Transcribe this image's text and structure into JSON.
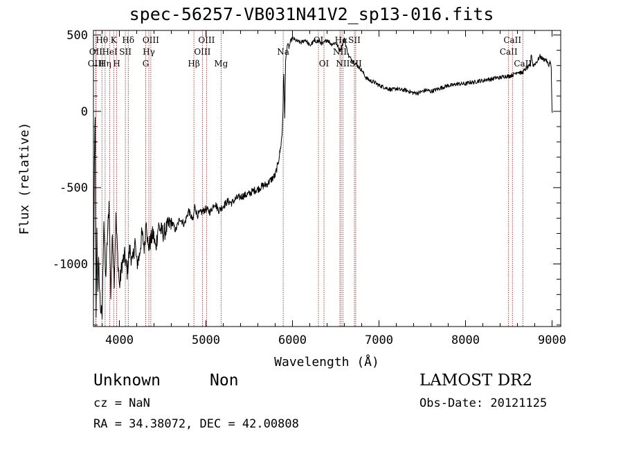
{
  "header": {
    "title": "spec-56257-VB031N41V2_sp13-016.fits"
  },
  "info": {
    "object_class": "Unknown",
    "object_subclass": "Non",
    "survey": "LAMOST DR2",
    "cz": "cz = NaN",
    "obs_date": "Obs-Date: 20121125",
    "radec": "RA =  34.38072, DEC =  42.00808"
  },
  "chart_data": {
    "type": "line",
    "xlabel": "Wavelength (Å)",
    "ylabel": "Flux (relative)",
    "xlim": [
      3700,
      9100
    ],
    "ylim": [
      -1410,
      530
    ],
    "xticks": [
      4000,
      5000,
      6000,
      7000,
      8000,
      9000
    ],
    "yticks": [
      500,
      0,
      -500,
      -1000
    ],
    "line_color": "#000000",
    "marker_color": "#8b1a1a",
    "series": [
      {
        "x": [
          3700,
          3710,
          3720,
          3730,
          3740,
          3750,
          3760,
          3780,
          3800,
          3820,
          3840,
          3860,
          3880,
          3900,
          3920,
          3940,
          3960,
          3980,
          4000,
          4030,
          4060,
          4090,
          4120,
          4150,
          4180,
          4200,
          4230,
          4260,
          4290,
          4310,
          4330,
          4360,
          4390,
          4420,
          4450,
          4480,
          4510,
          4550,
          4600,
          4650,
          4700,
          4750,
          4800,
          4850,
          4870,
          4900,
          4950,
          5000,
          5050,
          5100,
          5150,
          5200,
          5250,
          5300,
          5350,
          5400,
          5450,
          5500,
          5550,
          5600,
          5650,
          5700,
          5750,
          5800,
          5830,
          5860,
          5880,
          5890,
          5895,
          5900,
          5910,
          5920,
          5940,
          5960,
          5980,
          6000,
          6050,
          6100,
          6150,
          6200,
          6250,
          6300,
          6350,
          6400,
          6450,
          6500,
          6550,
          6600,
          6650,
          6700,
          6750,
          6800,
          6850,
          6900,
          6950,
          7000,
          7050,
          7100,
          7150,
          7200,
          7250,
          7300,
          7350,
          7400,
          7450,
          7500,
          7550,
          7600,
          7650,
          7700,
          7750,
          7800,
          7850,
          7900,
          7950,
          8000,
          8050,
          8100,
          8150,
          8200,
          8250,
          8300,
          8350,
          8400,
          8450,
          8500,
          8550,
          8600,
          8650,
          8700,
          8750,
          8760,
          8780,
          8800,
          8830,
          8860,
          8900,
          8930,
          8960,
          8980,
          8990,
          9000,
          9005
        ],
        "y": [
          -1300,
          -400,
          0,
          -1390,
          -800,
          -1150,
          -1000,
          -1280,
          -1350,
          -700,
          -1100,
          -850,
          -600,
          -1200,
          -800,
          -1100,
          -700,
          -950,
          -1150,
          -1000,
          -950,
          -1050,
          -900,
          -1000,
          -850,
          -1000,
          -950,
          -800,
          -900,
          -680,
          -900,
          -850,
          -800,
          -900,
          -750,
          -780,
          -800,
          -760,
          -720,
          -780,
          -700,
          -740,
          -650,
          -720,
          -620,
          -680,
          -660,
          -640,
          -660,
          -600,
          -650,
          -620,
          -590,
          -600,
          -570,
          -560,
          -550,
          -540,
          -520,
          -510,
          -490,
          -480,
          -450,
          -420,
          -350,
          -250,
          -150,
          0,
          200,
          250,
          -50,
          320,
          440,
          420,
          460,
          480,
          460,
          450,
          470,
          430,
          460,
          460,
          440,
          470,
          440,
          450,
          400,
          470,
          360,
          330,
          300,
          270,
          220,
          200,
          190,
          170,
          160,
          150,
          140,
          150,
          140,
          140,
          130,
          120,
          120,
          130,
          140,
          130,
          140,
          150,
          160,
          170,
          170,
          180,
          180,
          180,
          190,
          190,
          200,
          200,
          210,
          210,
          220,
          220,
          230,
          230,
          240,
          260,
          250,
          280,
          300,
          380,
          300,
          310,
          330,
          360,
          340,
          340,
          300,
          330,
          280,
          0,
          -10
        ],
        "noise": 55
      }
    ],
    "lines": [
      {
        "name": "Hθ",
        "x": 3798,
        "row": 0
      },
      {
        "name": "OII",
        "x": 3727,
        "row": 1
      },
      {
        "name": "OIII",
        "x": 3730,
        "row": 2
      },
      {
        "name": "Hη",
        "x": 3835,
        "row": 2
      },
      {
        "name": "HeI",
        "x": 3889,
        "row": 1
      },
      {
        "name": "K",
        "x": 3934,
        "row": 0
      },
      {
        "name": "H",
        "x": 3969,
        "row": 2
      },
      {
        "name": "SII",
        "x": 4069,
        "row": 1
      },
      {
        "name": "Hδ",
        "x": 4102,
        "row": 0
      },
      {
        "name": "G",
        "x": 4304,
        "row": 2
      },
      {
        "name": "Hγ",
        "x": 4340,
        "row": 1
      },
      {
        "name": "OIII",
        "x": 4363,
        "row": 0
      },
      {
        "name": "Hβ",
        "x": 4861,
        "row": 2
      },
      {
        "name": "OIII",
        "x": 4959,
        "row": 1
      },
      {
        "name": "OIII",
        "x": 5007,
        "row": 0
      },
      {
        "name": "Mg",
        "x": 5175,
        "row": 2
      },
      {
        "name": "Na",
        "x": 5893,
        "row": 1
      },
      {
        "name": "OI",
        "x": 6300,
        "row": 0
      },
      {
        "name": "OI",
        "x": 6364,
        "row": 2
      },
      {
        "name": "NII",
        "x": 6548,
        "row": 1
      },
      {
        "name": "Hα",
        "x": 6563,
        "row": 0
      },
      {
        "name": "NII",
        "x": 6583,
        "row": 2
      },
      {
        "name": "SII",
        "x": 6716,
        "row": 0
      },
      {
        "name": "SII",
        "x": 6731,
        "row": 2
      },
      {
        "name": "CaII",
        "x": 8498,
        "row": 1
      },
      {
        "name": "CaII",
        "x": 8542,
        "row": 0
      },
      {
        "name": "CaII",
        "x": 8662,
        "row": 2
      }
    ]
  }
}
